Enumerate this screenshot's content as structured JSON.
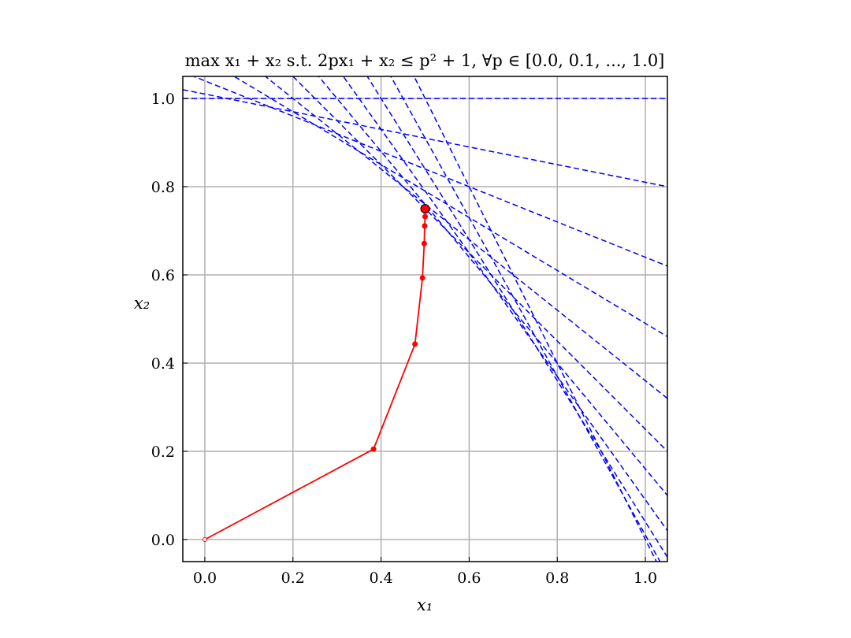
{
  "chart_data": {
    "type": "line",
    "title": "max x₁ + x₂ s.t. 2px₁ + x₂ ≤ p² + 1, ∀p ∈ [0.0, 0.1, ..., 1.0]",
    "xlabel": "x₁",
    "ylabel": "x₂",
    "xlim": [
      -0.05,
      1.05
    ],
    "ylim": [
      -0.05,
      1.05
    ],
    "xticks": [
      "0.0",
      "0.2",
      "0.4",
      "0.6",
      "0.8",
      "1.0"
    ],
    "yticks": [
      "0.0",
      "0.2",
      "0.4",
      "0.6",
      "0.8",
      "1.0"
    ],
    "grid": true,
    "constraint_lines": {
      "equation": "x₂ = p² + 1 − 2p·x₁",
      "p_values": [
        0.0,
        0.1,
        0.2,
        0.3,
        0.4,
        0.5,
        0.6,
        0.7,
        0.8,
        0.9,
        1.0
      ],
      "color": "#0000ff",
      "style": "dashed"
    },
    "iterate_path": {
      "color": "#ff0000",
      "points": [
        [
          0.0,
          0.0
        ],
        [
          0.383,
          0.205
        ],
        [
          0.477,
          0.443
        ],
        [
          0.494,
          0.593
        ],
        [
          0.498,
          0.671
        ],
        [
          0.499,
          0.711
        ],
        [
          0.5,
          0.732
        ],
        [
          0.5,
          0.745
        ]
      ],
      "final_point": [
        0.5,
        0.75
      ]
    }
  }
}
